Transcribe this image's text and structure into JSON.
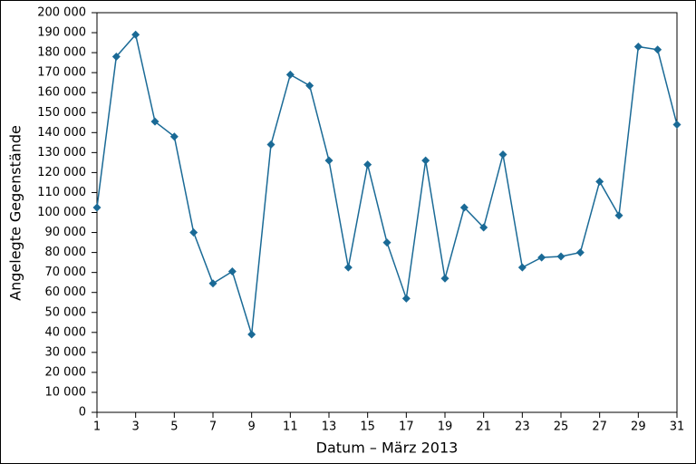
{
  "chart_data": {
    "type": "line",
    "x_label": "Datum – März 2013",
    "y_label": "Angelegte Gegenstände",
    "x": [
      1,
      2,
      3,
      4,
      5,
      6,
      7,
      8,
      9,
      10,
      11,
      12,
      13,
      14,
      15,
      16,
      17,
      18,
      19,
      20,
      21,
      22,
      23,
      24,
      25,
      26,
      27,
      28,
      29,
      30,
      31
    ],
    "values": [
      102500,
      178000,
      189000,
      145500,
      138000,
      90000,
      64500,
      70500,
      39000,
      134000,
      169000,
      163500,
      126000,
      72500,
      124000,
      85000,
      57000,
      126000,
      67000,
      102500,
      92500,
      129000,
      72500,
      77500,
      78000,
      80000,
      115500,
      98500,
      183000,
      181500,
      144000
    ],
    "color": "#1a6a96",
    "xlim": [
      1,
      31
    ],
    "xticks": [
      1,
      3,
      5,
      7,
      9,
      11,
      13,
      15,
      17,
      19,
      21,
      23,
      25,
      27,
      29,
      31
    ],
    "ylim": [
      0,
      200000
    ],
    "yticks": [
      0,
      {
        "value": 10000,
        "label": "10 000"
      },
      {
        "value": 20000,
        "label": "20 000"
      },
      {
        "value": 30000,
        "label": "30 000"
      },
      {
        "value": 40000,
        "label": "40 000"
      },
      {
        "value": 50000,
        "label": "50 000"
      },
      {
        "value": 60000,
        "label": "60 000"
      },
      {
        "value": 70000,
        "label": "70 000"
      },
      {
        "value": 80000,
        "label": "80 000"
      },
      {
        "value": 90000,
        "label": "90 000"
      },
      {
        "value": 100000,
        "label": "100 000"
      },
      {
        "value": 110000,
        "label": "110 000"
      },
      {
        "value": 120000,
        "label": "120 000"
      },
      {
        "value": 130000,
        "label": "130 000"
      },
      {
        "value": 140000,
        "label": "140 000"
      },
      {
        "value": 150000,
        "label": "150 000"
      },
      {
        "value": 160000,
        "label": "160 000"
      },
      {
        "value": 170000,
        "label": "170 000"
      },
      {
        "value": 180000,
        "label": "180 000"
      },
      {
        "value": 190000,
        "label": "190 000"
      },
      {
        "value": 200000,
        "label": "200 000"
      }
    ],
    "grid": false
  }
}
